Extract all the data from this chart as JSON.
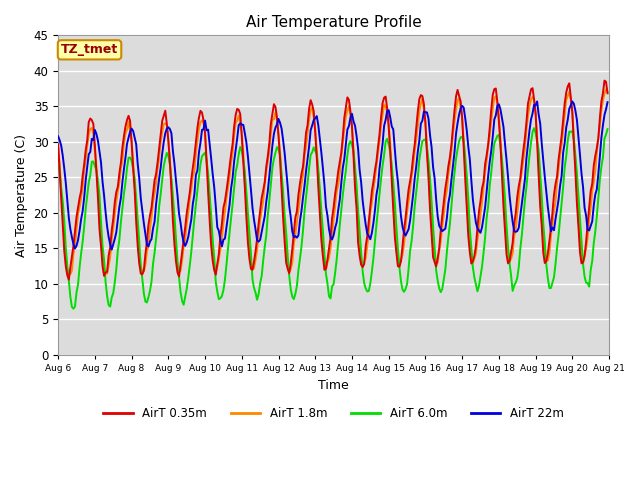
{
  "title": "Air Temperature Profile",
  "xlabel": "Time",
  "ylabel": "Air Temperature (C)",
  "ylim": [
    0,
    45
  ],
  "label_text": "TZ_tmet",
  "plot_bg": "#dcdcdc",
  "fig_background": "#ffffff",
  "xticklabels": [
    "Aug 6",
    "Aug 7",
    "Aug 8",
    "Aug 9",
    "Aug 10",
    "Aug 11",
    "Aug 12",
    "Aug 13",
    "Aug 14",
    "Aug 15",
    "Aug 16",
    "Aug 17",
    "Aug 18",
    "Aug 19",
    "Aug 20",
    "Aug 21"
  ],
  "series": [
    {
      "label": "AirT 0.35m",
      "color": "#dd0000",
      "lw": 1.4
    },
    {
      "label": "AirT 1.8m",
      "color": "#ff8800",
      "lw": 1.4
    },
    {
      "label": "AirT 6.0m",
      "color": "#00dd00",
      "lw": 1.4
    },
    {
      "label": "AirT 22m",
      "color": "#0000dd",
      "lw": 1.4
    }
  ]
}
